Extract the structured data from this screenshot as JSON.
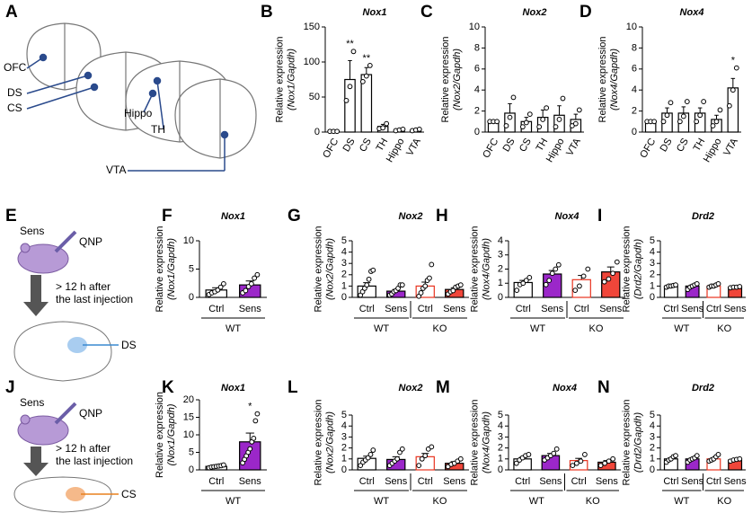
{
  "figure": {
    "panel_a": {
      "letter": "A",
      "labels": [
        "OFC",
        "DS",
        "CS",
        "Hippo",
        "TH",
        "VTA"
      ]
    },
    "panel_e": {
      "letter": "E",
      "group": "Sens",
      "drug": "QNP",
      "note": [
        "> 12 h after",
        "the last injection"
      ],
      "region": "DS"
    },
    "panel_j": {
      "letter": "J",
      "group": "Sens",
      "drug": "QNP",
      "note": [
        "> 12 h after",
        "the last injection"
      ],
      "region": "CS"
    }
  },
  "chart_data": [
    {
      "type": "bar",
      "letter": "B",
      "title": "Nox1",
      "ylabel": [
        "Relative expression",
        "(Nox1/Gapdh)"
      ],
      "categories": [
        "OFC",
        "DS",
        "CS",
        "TH",
        "Hippo",
        "VTA"
      ],
      "values": [
        1,
        75,
        82,
        8,
        3,
        3
      ],
      "errors": [
        0.5,
        27,
        10,
        3,
        1,
        1
      ],
      "points": [
        [
          1,
          1,
          1
        ],
        [
          45,
          65,
          115
        ],
        [
          72,
          80,
          95
        ],
        [
          5,
          6,
          12
        ],
        [
          2,
          3,
          4
        ],
        [
          2,
          3,
          4
        ]
      ],
      "annotations": [
        {
          "index": 1,
          "text": "**"
        },
        {
          "index": 2,
          "text": "**"
        }
      ],
      "colors": [
        "#ffffff",
        "#ffffff",
        "#ffffff",
        "#ffffff",
        "#ffffff",
        "#ffffff"
      ],
      "edge_colors": [
        "#000000",
        "#000000",
        "#000000",
        "#000000",
        "#000000",
        "#000000"
      ],
      "ylim": [
        0,
        150
      ],
      "yticks": [
        0,
        50,
        100,
        150
      ]
    },
    {
      "type": "bar",
      "letter": "C",
      "title": "Nox2",
      "ylabel": [
        "Relative expression",
        "(Nox2/Gapdh)"
      ],
      "categories": [
        "OFC",
        "DS",
        "CS",
        "TH",
        "Hippo",
        "VTA"
      ],
      "values": [
        1,
        1.8,
        1,
        1.4,
        1.6,
        1.2
      ],
      "errors": [
        0.1,
        0.9,
        0.4,
        0.7,
        0.9,
        0.5
      ],
      "points": [
        [
          1,
          1,
          1
        ],
        [
          0.6,
          1.4,
          3.3
        ],
        [
          0.5,
          0.9,
          1.7
        ],
        [
          0.5,
          1.2,
          2.3
        ],
        [
          0.5,
          1.2,
          3.2
        ],
        [
          0.6,
          0.8,
          2.1
        ]
      ],
      "colors": [
        "#ffffff",
        "#ffffff",
        "#ffffff",
        "#ffffff",
        "#ffffff",
        "#ffffff"
      ],
      "edge_colors": [
        "#000000",
        "#000000",
        "#000000",
        "#000000",
        "#000000",
        "#000000"
      ],
      "ylim": [
        0,
        10
      ],
      "yticks": [
        0,
        2,
        4,
        6,
        8,
        10
      ]
    },
    {
      "type": "bar",
      "letter": "D",
      "title": "Nox4",
      "ylabel": [
        "Relative expression",
        "(Nox4/Gapdh)"
      ],
      "categories": [
        "OFC",
        "DS",
        "CS",
        "TH",
        "Hippo",
        "VTA"
      ],
      "values": [
        1,
        1.8,
        1.8,
        1.8,
        1.2,
        4.2
      ],
      "errors": [
        0.05,
        0.5,
        0.6,
        0.5,
        0.4,
        0.9
      ],
      "points": [
        [
          1,
          1,
          1
        ],
        [
          1,
          1.6,
          2.8
        ],
        [
          1,
          1.5,
          2.9
        ],
        [
          1,
          1.6,
          2.9
        ],
        [
          0.6,
          1,
          2.1
        ],
        [
          2.5,
          4,
          6.1
        ]
      ],
      "annotations": [
        {
          "index": 5,
          "text": "*"
        }
      ],
      "colors": [
        "#ffffff",
        "#ffffff",
        "#ffffff",
        "#ffffff",
        "#ffffff",
        "#ffffff"
      ],
      "edge_colors": [
        "#000000",
        "#000000",
        "#000000",
        "#000000",
        "#000000",
        "#000000"
      ],
      "ylim": [
        0,
        10
      ],
      "yticks": [
        0,
        2,
        4,
        6,
        8,
        10
      ]
    },
    {
      "type": "bar",
      "letter": "F",
      "title": "Nox1",
      "ylabel": [
        "Relative expression",
        "(Nox1/Gapdh)"
      ],
      "categories": [
        "Ctrl",
        "Sens"
      ],
      "groups": [
        "WT"
      ],
      "values": [
        1.3,
        2.2
      ],
      "errors": [
        0.4,
        0.7
      ],
      "points": [
        [
          0.5,
          0.8,
          1,
          1.3,
          1.8,
          2.4
        ],
        [
          0.8,
          1.2,
          1.9,
          2.4,
          3.4,
          4
        ]
      ],
      "colors": [
        "#ffffff",
        "#9b27c9"
      ],
      "edge_colors": [
        "#000000",
        "#000000"
      ],
      "ylim": [
        0,
        10
      ],
      "yticks": [
        0,
        5,
        10
      ]
    },
    {
      "type": "bar",
      "letter": "G",
      "title": "Nox2",
      "ylabel": [
        "Relative expression",
        "(Nox2/Gapdh)"
      ],
      "categories": [
        "Ctrl",
        "Sens",
        "Ctrl",
        "Sens"
      ],
      "groups": [
        "WT",
        "KO"
      ],
      "values": [
        1,
        0.55,
        1,
        0.7
      ],
      "errors": [
        0.3,
        0.15,
        0.35,
        0.15
      ],
      "points": [
        [
          0.2,
          0.5,
          0.8,
          1.1,
          1.6,
          2.3,
          2.4
        ],
        [
          0.2,
          0.3,
          0.5,
          0.6,
          0.8,
          1.1,
          1.1
        ],
        [
          0.1,
          0.4,
          0.8,
          1,
          1.5,
          1.7,
          2.9
        ],
        [
          0.3,
          0.5,
          0.6,
          0.9,
          1,
          1.1
        ]
      ],
      "colors": [
        "#ffffff",
        "#9b27c9",
        "#ffffff",
        "#f0463a"
      ],
      "edge_colors": [
        "#000000",
        "#000000",
        "#e8331f",
        "#000000"
      ],
      "ylim": [
        0,
        5
      ],
      "yticks": [
        0,
        1,
        2,
        3,
        4,
        5
      ]
    },
    {
      "type": "bar",
      "letter": "H",
      "title": "Nox4",
      "ylabel": [
        "Relative expression",
        "(Nox4/Gapdh)"
      ],
      "categories": [
        "Ctrl",
        "Sens",
        "Ctrl",
        "Sens"
      ],
      "groups": [
        "WT",
        "KO"
      ],
      "values": [
        1.05,
        1.65,
        1.25,
        1.8
      ],
      "errors": [
        0.15,
        0.25,
        0.3,
        0.35
      ],
      "points": [
        [
          0.5,
          0.9,
          1,
          1.2,
          1.4
        ],
        [
          0.9,
          1.2,
          1.7,
          2,
          2.3
        ],
        [
          0.5,
          0.8,
          1.5,
          2
        ],
        [
          1.1,
          1.3,
          1.7,
          2.5
        ]
      ],
      "colors": [
        "#ffffff",
        "#9b27c9",
        "#ffffff",
        "#f0463a"
      ],
      "edge_colors": [
        "#000000",
        "#000000",
        "#e8331f",
        "#000000"
      ],
      "ylim": [
        0,
        4
      ],
      "yticks": [
        0,
        1,
        2,
        3,
        4
      ]
    },
    {
      "type": "bar",
      "letter": "I",
      "title": "Drd2",
      "ylabel": [
        "Relative expression",
        "(Drd2/Gapdh)"
      ],
      "categories": [
        "Ctrl",
        "Sens",
        "Ctrl",
        "Sens"
      ],
      "groups": [
        "WT",
        "KO"
      ],
      "values": [
        1,
        1,
        1,
        0.9
      ],
      "errors": [
        0.05,
        0.1,
        0.08,
        0.03
      ],
      "points": [
        [
          0.9,
          1,
          1,
          1.05,
          1.1
        ],
        [
          0.7,
          0.9,
          1,
          1.1,
          1.2
        ],
        [
          0.9,
          1,
          1,
          1.1,
          1.2
        ],
        [
          0.85,
          0.9,
          0.9,
          0.95
        ]
      ],
      "colors": [
        "#ffffff",
        "#9b27c9",
        "#ffffff",
        "#f0463a"
      ],
      "edge_colors": [
        "#000000",
        "#000000",
        "#e8331f",
        "#000000"
      ],
      "ylim": [
        0,
        5
      ],
      "yticks": [
        0,
        1,
        2,
        3,
        4,
        5
      ]
    },
    {
      "type": "bar",
      "letter": "K",
      "title": "Nox1",
      "ylabel": [
        "Relative expression",
        "(Nox1/Gapdh)"
      ],
      "categories": [
        "Ctrl",
        "Sens"
      ],
      "groups": [
        "WT"
      ],
      "values": [
        1,
        8
      ],
      "errors": [
        0.2,
        2.5
      ],
      "points": [
        [
          0.6,
          0.8,
          0.9,
          1,
          1.1,
          1.2,
          1.4
        ],
        [
          2,
          3,
          4,
          5,
          6,
          8,
          9,
          14,
          16
        ]
      ],
      "annotations": [
        {
          "index": 1,
          "text": "*"
        }
      ],
      "colors": [
        "#ffffff",
        "#9b27c9"
      ],
      "edge_colors": [
        "#000000",
        "#000000"
      ],
      "ylim": [
        0,
        20
      ],
      "yticks": [
        0,
        5,
        10,
        15,
        20
      ]
    },
    {
      "type": "bar",
      "letter": "L",
      "title": "Nox2",
      "ylabel": [
        "Relative expression",
        "(Nox2/Gapdh)"
      ],
      "categories": [
        "Ctrl",
        "Sens",
        "Ctrl",
        "Sens"
      ],
      "groups": [
        "WT",
        "KO"
      ],
      "values": [
        1.05,
        0.95,
        1.2,
        0.6
      ],
      "errors": [
        0.2,
        0.25,
        0.3,
        0.15
      ],
      "points": [
        [
          0.4,
          0.7,
          0.9,
          1.1,
          1.4,
          1.8
        ],
        [
          0.4,
          0.6,
          0.8,
          1,
          1.6,
          1.9
        ],
        [
          0.4,
          1,
          1.3,
          1.9,
          2.1
        ],
        [
          0.3,
          0.5,
          0.6,
          0.8,
          1
        ]
      ],
      "colors": [
        "#ffffff",
        "#9b27c9",
        "#ffffff",
        "#f0463a"
      ],
      "edge_colors": [
        "#000000",
        "#000000",
        "#e8331f",
        "#000000"
      ],
      "ylim": [
        0,
        5
      ],
      "yticks": [
        0,
        1,
        2,
        3,
        4,
        5
      ]
    },
    {
      "type": "bar",
      "letter": "M",
      "title": "Nox4",
      "ylabel": [
        "Relative expression",
        "(Nox4/Gapdh)"
      ],
      "categories": [
        "Ctrl",
        "Sens",
        "Ctrl",
        "Sens"
      ],
      "groups": [
        "WT",
        "KO"
      ],
      "values": [
        1,
        1.3,
        0.85,
        0.7
      ],
      "errors": [
        0.15,
        0.2,
        0.2,
        0.15
      ],
      "points": [
        [
          0.6,
          0.9,
          1.1,
          1.3,
          1.4
        ],
        [
          0.9,
          1.1,
          1.3,
          1.5,
          1.9
        ],
        [
          0.4,
          0.6,
          0.8,
          1.4
        ],
        [
          0.4,
          0.6,
          0.8,
          1
        ]
      ],
      "colors": [
        "#ffffff",
        "#9b27c9",
        "#ffffff",
        "#f0463a"
      ],
      "edge_colors": [
        "#000000",
        "#000000",
        "#e8331f",
        "#000000"
      ],
      "ylim": [
        0,
        5
      ],
      "yticks": [
        0,
        1,
        2,
        3,
        4,
        5
      ]
    },
    {
      "type": "bar",
      "letter": "N",
      "title": "Drd2",
      "ylabel": [
        "Relative expression",
        "(Drd2/Gapdh)"
      ],
      "categories": [
        "Ctrl",
        "Sens",
        "Ctrl",
        "Sens"
      ],
      "groups": [
        "WT",
        "KO"
      ],
      "values": [
        1,
        1,
        1,
        0.9
      ],
      "errors": [
        0.1,
        0.1,
        0.1,
        0.05
      ],
      "points": [
        [
          0.7,
          0.9,
          1,
          1.2,
          1.3
        ],
        [
          0.7,
          0.9,
          1,
          1.1,
          1.3
        ],
        [
          0.8,
          0.9,
          1,
          1.2,
          1.4
        ],
        [
          0.8,
          0.9,
          0.95,
          1
        ]
      ],
      "colors": [
        "#ffffff",
        "#9b27c9",
        "#ffffff",
        "#f0463a"
      ],
      "edge_colors": [
        "#000000",
        "#000000",
        "#e8331f",
        "#000000"
      ],
      "ylim": [
        0,
        5
      ],
      "yticks": [
        0,
        1,
        2,
        3,
        4,
        5
      ]
    }
  ]
}
